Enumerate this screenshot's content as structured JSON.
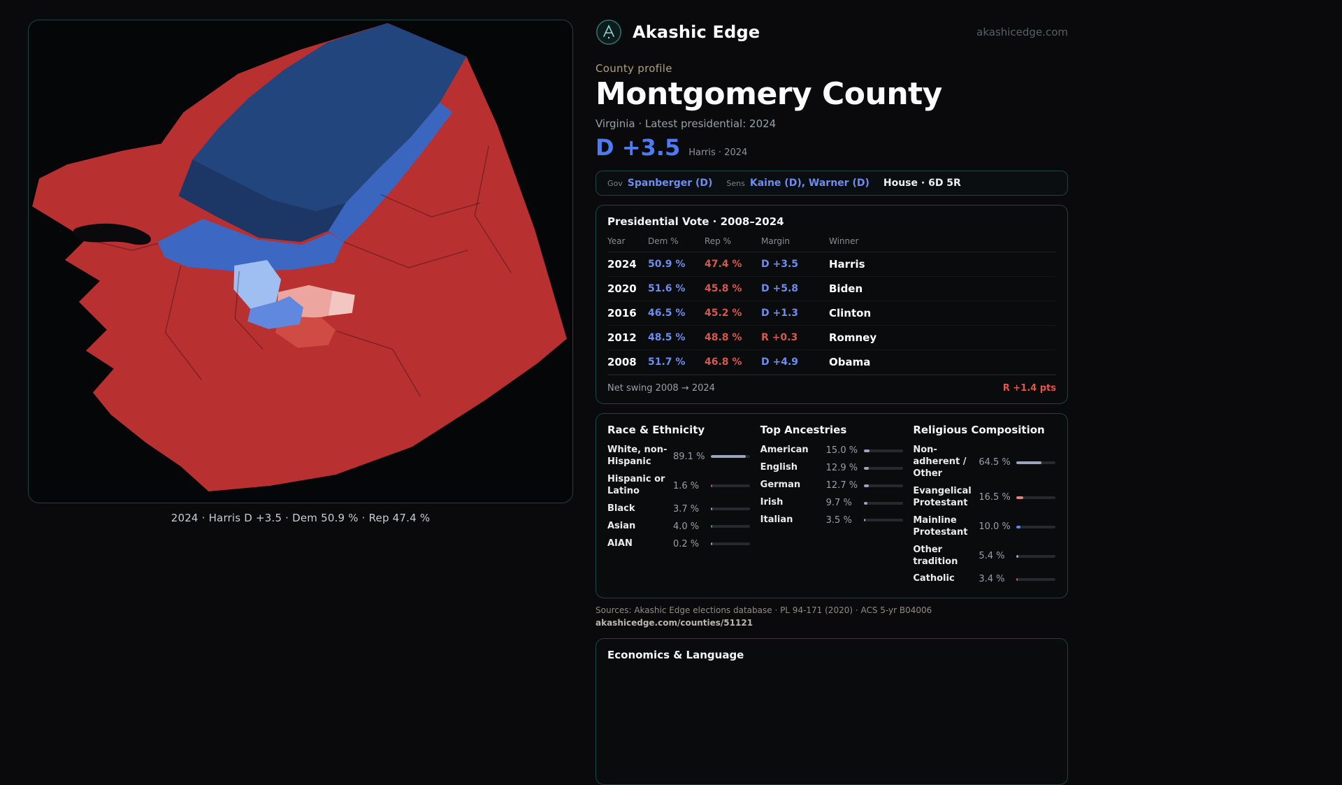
{
  "colors": {
    "dem_blue": "#6e8df0",
    "rep_red": "#d85850",
    "headline_blue": "#4e7bf2",
    "accent_border": "#1b4542"
  },
  "brand": {
    "logo": "compass-peak-icon",
    "name": "Akashic Edge",
    "domain": "akashicedge.com"
  },
  "profile": {
    "eyebrow": "County profile",
    "title": "Montgomery County",
    "subtitle": "Virginia · Latest presidential: 2024",
    "headline_margin": "D +3.5",
    "headline_caption": "Harris · 2024"
  },
  "officials": {
    "gov_label": "Gov",
    "gov": "Spanberger (D)",
    "sens_label": "Sens",
    "sens": "Kaine (D), Warner (D)",
    "house": "House · 6D 5R"
  },
  "map": {
    "caption": "2024 · Harris D +3.5 · Dem 50.9 % · Rep 47.4 %"
  },
  "presidential": {
    "title": "Presidential Vote · 2008–2024",
    "columns": [
      "Year",
      "Dem %",
      "Rep %",
      "Margin",
      "Winner"
    ],
    "rows": [
      {
        "year": "2024",
        "dem": "50.9 %",
        "rep": "47.4 %",
        "margin": "D +3.5",
        "winner": "Harris"
      },
      {
        "year": "2020",
        "dem": "51.6 %",
        "rep": "45.8 %",
        "margin": "D +5.8",
        "winner": "Biden"
      },
      {
        "year": "2016",
        "dem": "46.5 %",
        "rep": "45.2 %",
        "margin": "D +1.3",
        "winner": "Clinton"
      },
      {
        "year": "2012",
        "dem": "48.5 %",
        "rep": "48.8 %",
        "margin": "R +0.3",
        "winner": "Romney"
      },
      {
        "year": "2008",
        "dem": "51.7 %",
        "rep": "46.8 %",
        "margin": "D +4.9",
        "winner": "Obama"
      }
    ],
    "net_swing_label": "Net swing 2008 → 2024",
    "net_swing_value": "R +1.4 pts"
  },
  "demographics": {
    "race": {
      "title": "Race & Ethnicity",
      "rows": [
        {
          "label": "White, non-Hispanic",
          "value": "89.1 %",
          "pct": 89.1,
          "color": "#9aa6bd"
        },
        {
          "label": "Hispanic or Latino",
          "value": "1.6 %",
          "pct": 1.6,
          "color": "#c65a50"
        },
        {
          "label": "Black",
          "value": "3.7 %",
          "pct": 3.7,
          "color": "#9aa6bd"
        },
        {
          "label": "Asian",
          "value": "4.0 %",
          "pct": 4.0,
          "color": "#3fa372"
        },
        {
          "label": "AIAN",
          "value": "0.2 %",
          "pct": 0.2,
          "color": "#9aa6bd"
        }
      ]
    },
    "ancestries": {
      "title": "Top Ancestries",
      "rows": [
        {
          "label": "American",
          "value": "15.0 %",
          "pct": 15.0,
          "color": "#9aa6bd"
        },
        {
          "label": "English",
          "value": "12.9 %",
          "pct": 12.9,
          "color": "#9aa6bd"
        },
        {
          "label": "German",
          "value": "12.7 %",
          "pct": 12.7,
          "color": "#9aa6bd"
        },
        {
          "label": "Irish",
          "value": "9.7 %",
          "pct": 9.7,
          "color": "#9aa6bd"
        },
        {
          "label": "Italian",
          "value": "3.5 %",
          "pct": 3.5,
          "color": "#9aa6bd"
        }
      ]
    },
    "religion": {
      "title": "Religious Composition",
      "rows": [
        {
          "label": "Non-adherent / Other",
          "value": "64.5 %",
          "pct": 64.5,
          "color": "#9aa6bd"
        },
        {
          "label": "Evangelical Protestant",
          "value": "16.5 %",
          "pct": 16.5,
          "color": "#e0837c"
        },
        {
          "label": "Mainline Protestant",
          "value": "10.0 %",
          "pct": 10.0,
          "color": "#5d86e8"
        },
        {
          "label": "Other tradition",
          "value": "5.4 %",
          "pct": 5.4,
          "color": "#9aa6bd"
        },
        {
          "label": "Catholic",
          "value": "3.4 %",
          "pct": 3.4,
          "color": "#c65a50"
        }
      ]
    }
  },
  "sources": {
    "line1": "Sources: Akashic Edge elections database · PL 94-171 (2020) · ACS 5-yr B04006",
    "line2": "akashicedge.com/counties/51121"
  },
  "economics": {
    "title": "Economics & Language"
  }
}
